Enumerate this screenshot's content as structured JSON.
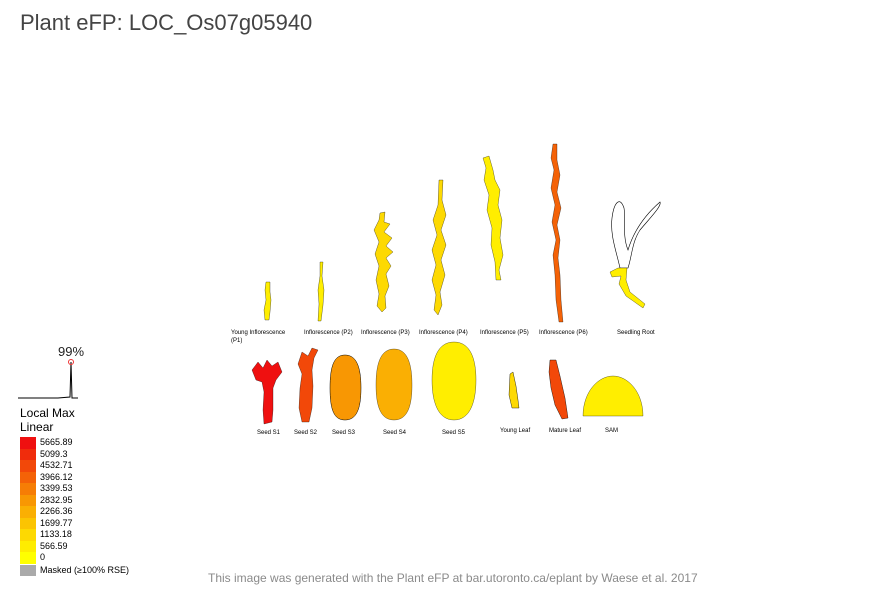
{
  "title": "Plant eFP: LOC_Os07g05940",
  "percentile": "99%",
  "legend": {
    "heading_1": "Local Max",
    "heading_2": "Linear",
    "items": [
      {
        "label": "5665.89",
        "color": "#ef1010"
      },
      {
        "label": "5099.3",
        "color": "#f02c0c"
      },
      {
        "label": "4532.71",
        "color": "#f24809"
      },
      {
        "label": "3966.12",
        "color": "#f46207"
      },
      {
        "label": "3399.53",
        "color": "#f67d05"
      },
      {
        "label": "2832.95",
        "color": "#f89703"
      },
      {
        "label": "2266.36",
        "color": "#faaf03"
      },
      {
        "label": "1699.77",
        "color": "#fbc402"
      },
      {
        "label": "1133.18",
        "color": "#fdd902"
      },
      {
        "label": "566.59",
        "color": "#feec01"
      },
      {
        "label": "0",
        "color": "#ffff00"
      }
    ],
    "masked_label": "Masked (≥100% RSE)",
    "masked_color": "#aaaaaa"
  },
  "tissues": {
    "young_inflorescence": "Young Inflorescence (P1)",
    "young_inflorescence_line1": "Young Inflorescence",
    "young_inflorescence_line2": "(P1)",
    "inflorescence_p2": "Inflorescence (P2)",
    "inflorescence_p3": "Inflorescence (P3)",
    "inflorescence_p4": "Inflorescence (P4)",
    "inflorescence_p5": "Inflorescence (P5)",
    "inflorescence_p6": "Inflorescence (P6)",
    "seedling_root": "Seedling Root",
    "seed_s1": "Seed S1",
    "seed_s2": "Seed S2",
    "seed_s3": "Seed S3",
    "seed_s4": "Seed S4",
    "seed_s5": "Seed S5",
    "young_leaf": "Young Leaf",
    "mature_leaf": "Mature Leaf",
    "sam": "SAM"
  },
  "tissue_colors": {
    "young_inflorescence": "#ffee00",
    "inflorescence_p2": "#ffee00",
    "inflorescence_p3": "#fdd902",
    "inflorescence_p4": "#fdd902",
    "inflorescence_p5": "#ffee00",
    "inflorescence_p6": "#f46207",
    "seedling_root": "#ffee00",
    "seed_s1": "#ef1010",
    "seed_s2": "#f24809",
    "seed_s3": "#f89703",
    "seed_s4": "#faaf03",
    "seed_s5": "#ffee00",
    "young_leaf": "#fdd902",
    "mature_leaf": "#f24809",
    "sam": "#ffee00"
  },
  "footer": "This image was generated with the Plant eFP at bar.utoronto.ca/eplant by Waese et al. 2017"
}
